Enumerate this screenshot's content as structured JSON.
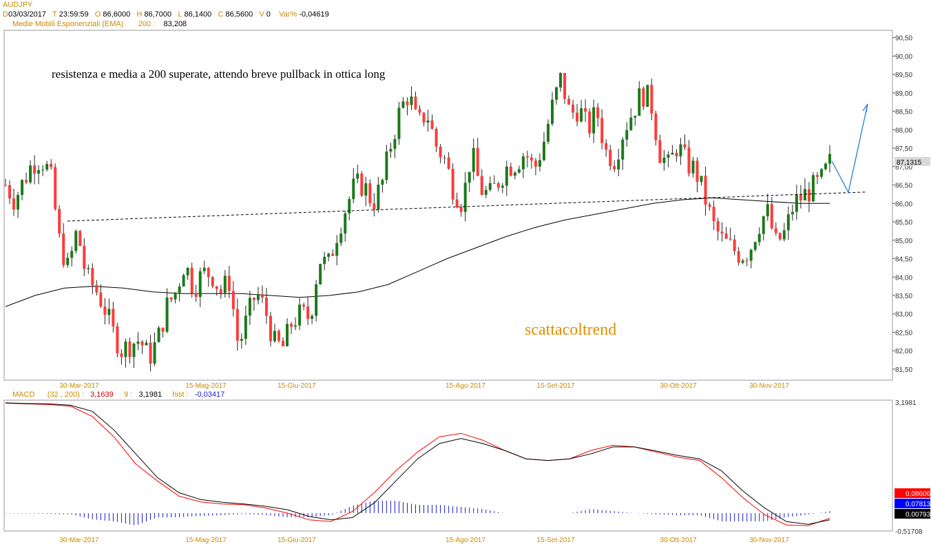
{
  "symbol": "AUDJPY",
  "ohlc_line": {
    "d_key": "D",
    "d": "03/03/2017",
    "t_key": "T",
    "t": "23:59:59",
    "o_key": "O",
    "o": "86,6000",
    "h_key": "H",
    "h": "86,7000",
    "l_key": "L",
    "l": "86,1400",
    "c_key": "C",
    "c": "86,5600",
    "v_key": "V",
    "v": "0",
    "var_key": "Var%",
    "var": "-0,04619"
  },
  "ema_line": {
    "label": "Medie Mobili Esponenziali (EMA)",
    "period": "200",
    "sep": ":",
    "value": "83,208"
  },
  "macd_line": {
    "label": "MACD",
    "params": "(32 , 200)",
    "sep": ":",
    "macd_value": "3,1639",
    "signal_label": "9",
    "signal_value": "3,1981",
    "hist_label": "hist",
    "hist_value": "-0,03417"
  },
  "annotation": "resistenza e media a 200 superate, attendo breve pullback in ottica long",
  "watermark": "scattacoltrend",
  "colors": {
    "up": "#1a7a1a",
    "down": "#ff3b3b",
    "ema": "#000000",
    "macd": "#ff0000",
    "signal": "#000000",
    "hist": "#1a1acc",
    "accent": "#e09000",
    "arrow": "#2a7fd4"
  },
  "chart_data": [
    {
      "type": "candlestick",
      "title": "",
      "xlabel": "",
      "ylabel": "",
      "ylim": [
        81.2,
        90.7
      ],
      "y_ticks": [
        "90,50",
        "90,00",
        "89,50",
        "89,00",
        "88,50",
        "88,00",
        "87,50",
        "87,00",
        "86,50",
        "86,00",
        "85,50",
        "85,00",
        "84,50",
        "84,00",
        "83,50",
        "83,00",
        "82,50",
        "82,00",
        "81,50"
      ],
      "x_tick_labels": [
        "30-Mar-2017",
        "15-Mag-2017",
        "15-Giu-2017",
        "15-Ago-2017",
        "15-Set-2017",
        "30-Ott-2017",
        "30-Nov-2017"
      ],
      "price_label": "87,1315",
      "close_path": [
        86.5,
        86.1,
        86.6,
        87.1,
        87.2,
        86.8,
        85.0,
        84.2,
        85.3,
        84.0,
        83.7,
        83.2,
        82.5,
        82.0,
        82.2,
        82.3,
        81.8,
        82.3,
        83.2,
        83.6,
        84.4,
        83.7,
        84.1,
        84.1,
        83.6,
        83.9,
        82.1,
        82.9,
        83.6,
        83.1,
        82.2,
        82.1,
        82.8,
        83.0,
        82.9,
        84.5,
        84.3,
        85.2,
        85.9,
        86.5,
        86.5,
        86.0,
        86.5,
        87.6,
        88.5,
        89.0,
        88.1,
        88.5,
        87.6,
        87.2,
        86.4,
        86.0,
        87.4,
        86.4,
        86.2,
        86.6,
        87.0,
        87.1,
        87.4,
        86.9,
        87.6,
        88.6,
        89.4,
        88.4,
        88.6,
        88.0,
        88.5,
        87.4,
        87.2,
        88.0,
        88.5,
        89.0,
        88.8,
        87.4,
        87.0,
        87.6,
        87.1,
        86.9,
        86.2,
        85.4,
        85.0,
        84.8,
        84.6,
        84.7,
        85.4,
        85.8,
        84.9,
        85.2,
        86.0,
        86.2,
        86.4,
        86.6,
        87.1
      ],
      "ema200_path": [
        83.2,
        83.5,
        83.7,
        83.75,
        83.7,
        83.6,
        83.55,
        83.55,
        83.55,
        83.5,
        83.45,
        83.5,
        83.6,
        83.8,
        84.15,
        84.5,
        84.8,
        85.1,
        85.35,
        85.55,
        85.7,
        85.85,
        86.0,
        86.1,
        86.15,
        86.1,
        86.05,
        86.0,
        86.0
      ],
      "dashed_resistance": {
        "from": 85.52,
        "to": 86.31
      },
      "projection_path": [
        87.15,
        86.3,
        88.7
      ]
    },
    {
      "type": "line",
      "title": "",
      "series": [
        {
          "name": "MACD",
          "values": [
            3.19,
            3.17,
            3.15,
            3.1,
            2.8,
            2.2,
            1.4,
            0.9,
            0.45,
            0.28,
            0.22,
            0.2,
            0.1,
            -0.05,
            -0.25,
            -0.3,
            0.0,
            0.55,
            1.2,
            1.75,
            2.2,
            2.3,
            2.1,
            1.8,
            1.55,
            1.5,
            1.55,
            1.8,
            1.95,
            1.9,
            1.75,
            1.6,
            1.5,
            1.0,
            0.4,
            -0.1,
            -0.4,
            -0.42,
            -0.2
          ]
        },
        {
          "name": "Signal",
          "values": [
            3.2,
            3.18,
            3.17,
            3.13,
            2.95,
            2.4,
            1.7,
            1.0,
            0.55,
            0.35,
            0.27,
            0.22,
            0.15,
            0.05,
            -0.15,
            -0.25,
            -0.18,
            0.25,
            0.9,
            1.55,
            2.0,
            2.15,
            2.0,
            1.8,
            1.55,
            1.5,
            1.55,
            1.7,
            1.9,
            1.9,
            1.78,
            1.65,
            1.55,
            1.2,
            0.6,
            0.1,
            -0.3,
            -0.38,
            -0.25
          ]
        }
      ],
      "ylim": [
        -0.51708,
        3.1981
      ],
      "y_tick_top": "3,1981",
      "y_tick_bottom": "-0,51708",
      "value_boxes": [
        "0,08606",
        "0,07813",
        "0,00793"
      ]
    }
  ]
}
